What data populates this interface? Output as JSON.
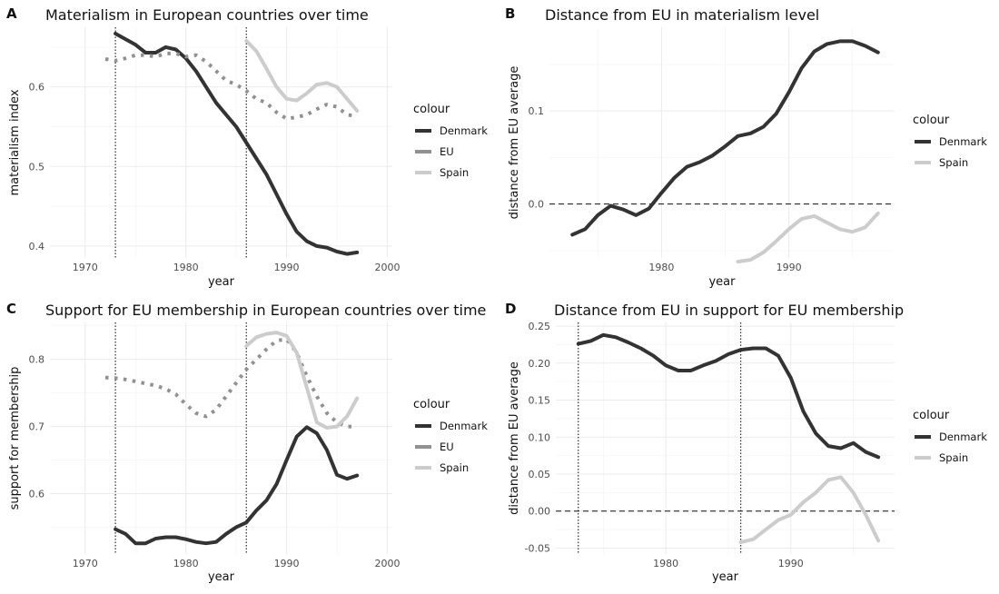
{
  "chart_data": [
    {
      "panel": "A",
      "type": "line",
      "title": "Materialism in European countries over time",
      "xlabel": "year",
      "ylabel": "materialism index",
      "xlim": [
        1966.5,
        2000.5
      ],
      "ylim": [
        0.385,
        0.675
      ],
      "xticks": [
        1970,
        1980,
        1990,
        2000
      ],
      "yticks": [
        0.4,
        0.5,
        0.6
      ],
      "ytick_labels": [
        "0.4",
        "0.5",
        "0.6"
      ],
      "vlines": [
        1973,
        1986
      ],
      "hline": null,
      "grid": true,
      "legend": {
        "title": "colour",
        "position": "right",
        "entries": [
          "Denmark",
          "EU",
          "Spain"
        ]
      },
      "series": [
        {
          "name": "Denmark",
          "color": "#333333",
          "dash": "solid",
          "x": [
            1973,
            1974,
            1975,
            1976,
            1977,
            1978,
            1979,
            1980,
            1981,
            1982,
            1983,
            1984,
            1985,
            1986,
            1987,
            1988,
            1989,
            1990,
            1991,
            1992,
            1993,
            1994,
            1995,
            1996,
            1997
          ],
          "y": [
            0.667,
            0.66,
            0.653,
            0.643,
            0.643,
            0.65,
            0.647,
            0.636,
            0.62,
            0.6,
            0.58,
            0.565,
            0.55,
            0.53,
            0.51,
            0.49,
            0.465,
            0.44,
            0.418,
            0.406,
            0.4,
            0.398,
            0.393,
            0.39,
            0.392
          ]
        },
        {
          "name": "EU",
          "color": "#919191",
          "dash": "dotted",
          "x": [
            1972,
            1973,
            1974,
            1975,
            1976,
            1977,
            1978,
            1979,
            1980,
            1981,
            1982,
            1983,
            1984,
            1985,
            1986,
            1987,
            1988,
            1989,
            1990,
            1991,
            1992,
            1993,
            1994,
            1995,
            1996,
            1997
          ],
          "y": [
            0.635,
            0.633,
            0.636,
            0.64,
            0.64,
            0.638,
            0.642,
            0.642,
            0.638,
            0.64,
            0.632,
            0.62,
            0.608,
            0.603,
            0.595,
            0.585,
            0.58,
            0.568,
            0.56,
            0.562,
            0.565,
            0.572,
            0.578,
            0.575,
            0.565,
            0.563
          ]
        },
        {
          "name": "Spain",
          "color": "#cccccc",
          "dash": "solid",
          "x": [
            1986,
            1987,
            1988,
            1989,
            1990,
            1991,
            1992,
            1993,
            1994,
            1995,
            1996,
            1997
          ],
          "y": [
            0.658,
            0.645,
            0.623,
            0.6,
            0.585,
            0.583,
            0.592,
            0.603,
            0.605,
            0.6,
            0.585,
            0.57
          ]
        }
      ]
    },
    {
      "panel": "B",
      "type": "line",
      "title": "Distance from EU in materialism level",
      "xlabel": "year",
      "ylabel": "distance from EU average",
      "xlim": [
        1971.2,
        1998.3
      ],
      "ylim": [
        -0.058,
        0.19
      ],
      "xticks": [
        1980,
        1990
      ],
      "yticks": [
        0.0,
        0.1
      ],
      "ytick_labels": [
        "0.0",
        "0.1"
      ],
      "vlines": [],
      "hline": 0,
      "grid": true,
      "legend": {
        "title": "colour",
        "position": "right",
        "entries": [
          "Denmark",
          "Spain"
        ]
      },
      "series": [
        {
          "name": "Denmark",
          "color": "#333333",
          "dash": "solid",
          "x": [
            1973,
            1974,
            1975,
            1976,
            1977,
            1978,
            1979,
            1980,
            1981,
            1982,
            1983,
            1984,
            1985,
            1986,
            1987,
            1988,
            1989,
            1990,
            1991,
            1992,
            1993,
            1994,
            1995,
            1996,
            1997
          ],
          "y": [
            -0.033,
            -0.027,
            -0.012,
            -0.002,
            -0.006,
            -0.012,
            -0.005,
            0.012,
            0.028,
            0.04,
            0.045,
            0.052,
            0.062,
            0.073,
            0.076,
            0.083,
            0.097,
            0.12,
            0.146,
            0.164,
            0.172,
            0.175,
            0.175,
            0.17,
            0.163
          ]
        },
        {
          "name": "Spain",
          "color": "#cccccc",
          "dash": "solid",
          "x": [
            1986,
            1987,
            1988,
            1989,
            1990,
            1991,
            1992,
            1993,
            1994,
            1995,
            1996,
            1997
          ],
          "y": [
            -0.062,
            -0.06,
            -0.052,
            -0.04,
            -0.027,
            -0.016,
            -0.013,
            -0.02,
            -0.027,
            -0.03,
            -0.025,
            -0.01
          ]
        }
      ]
    },
    {
      "panel": "C",
      "type": "line",
      "title": "Support for EU membership in European countries over time",
      "xlabel": "year",
      "ylabel": "support for membership",
      "xlim": [
        1966.5,
        2000.5
      ],
      "ylim": [
        0.51,
        0.855
      ],
      "xticks": [
        1970,
        1980,
        1990,
        2000
      ],
      "yticks": [
        0.6,
        0.7,
        0.8
      ],
      "ytick_labels": [
        "0.6",
        "0.7",
        "0.8"
      ],
      "vlines": [
        1973,
        1986
      ],
      "hline": null,
      "grid": true,
      "legend": {
        "title": "colour",
        "position": "right",
        "entries": [
          "Denmark",
          "EU",
          "Spain"
        ]
      },
      "series": [
        {
          "name": "Denmark",
          "color": "#333333",
          "dash": "solid",
          "x": [
            1973,
            1974,
            1975,
            1976,
            1977,
            1978,
            1979,
            1980,
            1981,
            1982,
            1983,
            1984,
            1985,
            1986,
            1987,
            1988,
            1989,
            1990,
            1991,
            1992,
            1993,
            1994,
            1995,
            1996,
            1997
          ],
          "y": [
            0.547,
            0.54,
            0.526,
            0.526,
            0.533,
            0.535,
            0.535,
            0.532,
            0.528,
            0.526,
            0.528,
            0.54,
            0.55,
            0.557,
            0.575,
            0.59,
            0.614,
            0.65,
            0.685,
            0.699,
            0.69,
            0.665,
            0.628,
            0.622,
            0.627
          ]
        },
        {
          "name": "EU",
          "color": "#919191",
          "dash": "dotted",
          "x": [
            1972,
            1973,
            1974,
            1975,
            1976,
            1977,
            1978,
            1979,
            1980,
            1981,
            1982,
            1983,
            1984,
            1985,
            1986,
            1987,
            1988,
            1989,
            1990,
            1991,
            1992,
            1993,
            1994,
            1995,
            1996,
            1997
          ],
          "y": [
            0.773,
            0.772,
            0.77,
            0.767,
            0.764,
            0.761,
            0.756,
            0.748,
            0.733,
            0.72,
            0.715,
            0.725,
            0.745,
            0.765,
            0.785,
            0.8,
            0.815,
            0.828,
            0.83,
            0.81,
            0.775,
            0.745,
            0.72,
            0.706,
            0.7,
            0.7
          ]
        },
        {
          "name": "Spain",
          "color": "#cccccc",
          "dash": "solid",
          "x": [
            1986,
            1987,
            1988,
            1989,
            1990,
            1991,
            1992,
            1993,
            1994,
            1995,
            1996,
            1997
          ],
          "y": [
            0.82,
            0.833,
            0.838,
            0.84,
            0.835,
            0.81,
            0.758,
            0.706,
            0.698,
            0.7,
            0.715,
            0.742
          ]
        }
      ]
    },
    {
      "panel": "D",
      "type": "line",
      "title": "Distance from EU in support for EU membership",
      "xlabel": "year",
      "ylabel": "distance from EU average",
      "xlim": [
        1971.2,
        1998.3
      ],
      "ylim": [
        -0.058,
        0.255
      ],
      "xticks": [
        1980,
        1990
      ],
      "yticks": [
        -0.05,
        0.0,
        0.05,
        0.1,
        0.15,
        0.2,
        0.25
      ],
      "ytick_labels": [
        "-0.05",
        "0.00",
        "0.05",
        "0.10",
        "0.15",
        "0.20",
        "0.25"
      ],
      "vlines": [
        1973,
        1986
      ],
      "hline": 0,
      "grid": true,
      "legend": {
        "title": "colour",
        "position": "right",
        "entries": [
          "Denmark",
          "Spain"
        ]
      },
      "series": [
        {
          "name": "Denmark",
          "color": "#333333",
          "dash": "solid",
          "x": [
            1973,
            1974,
            1975,
            1976,
            1977,
            1978,
            1979,
            1980,
            1981,
            1982,
            1983,
            1984,
            1985,
            1986,
            1987,
            1988,
            1989,
            1990,
            1991,
            1992,
            1993,
            1994,
            1995,
            1996,
            1997
          ],
          "y": [
            0.226,
            0.23,
            0.238,
            0.235,
            0.228,
            0.22,
            0.21,
            0.197,
            0.19,
            0.19,
            0.197,
            0.203,
            0.212,
            0.218,
            0.22,
            0.22,
            0.21,
            0.18,
            0.135,
            0.105,
            0.088,
            0.085,
            0.092,
            0.08,
            0.073
          ]
        },
        {
          "name": "Spain",
          "color": "#cccccc",
          "dash": "solid",
          "x": [
            1986,
            1987,
            1988,
            1989,
            1990,
            1991,
            1992,
            1993,
            1994,
            1995,
            1996,
            1997
          ],
          "y": [
            -0.042,
            -0.038,
            -0.025,
            -0.012,
            -0.005,
            0.012,
            0.025,
            0.042,
            0.046,
            0.025,
            -0.005,
            -0.04
          ]
        }
      ]
    }
  ]
}
